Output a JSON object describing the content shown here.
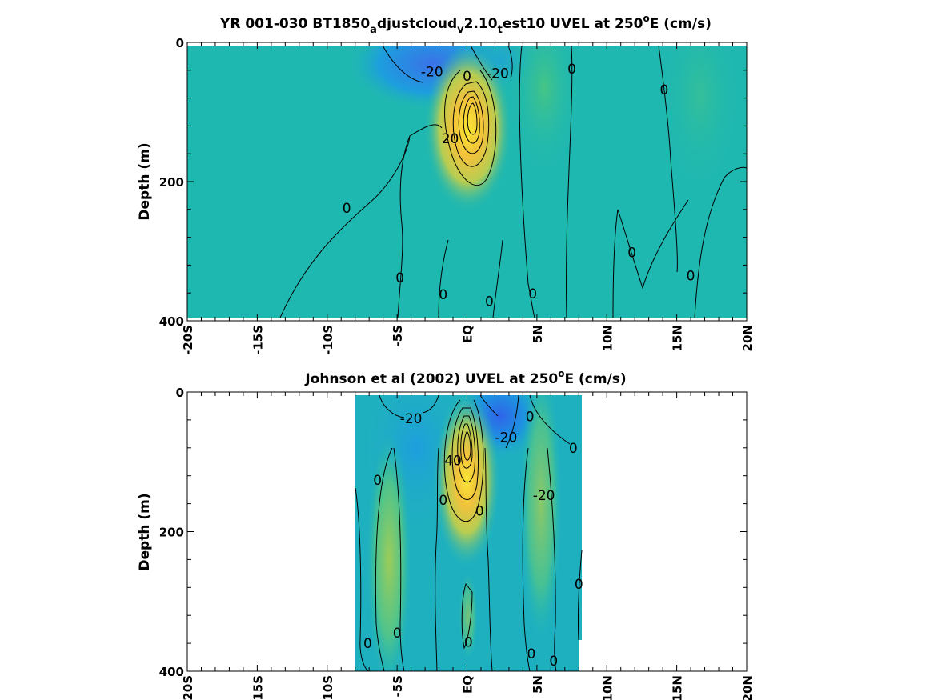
{
  "colors": {
    "background": "#1fb8b0",
    "colormap": [
      "#3a72e8",
      "#1d9ede",
      "#1fb8b0",
      "#58c78a",
      "#b7cd52",
      "#f1c23c",
      "#f9e534"
    ],
    "contour": "#000000"
  },
  "chart_data": [
    {
      "type": "heatmap",
      "title": "YR 001-030 BT1850",
      "title_sub_a": "a",
      "title_mid": "djustcloud",
      "title_sub_v": "v",
      "title_mid2": "2.10",
      "title_sub_t": "t",
      "title_end": "est10 UVEL at 250",
      "title_sup": "o",
      "title_unit": "E (cm/s)",
      "xlabel": "",
      "ylabel": "Depth (m)",
      "x_ticks": [
        "-20S",
        "-15S",
        "-10S",
        "-5S",
        "EQ",
        "5N",
        "10N",
        "15N",
        "20N"
      ],
      "x_tick_values": [
        -20,
        -15,
        -10,
        -5,
        0,
        5,
        10,
        15,
        20
      ],
      "y_ticks": [
        "0",
        "200",
        "400"
      ],
      "y_tick_values": [
        0,
        200,
        400
      ],
      "xlim": [
        -20,
        20
      ],
      "ylim": [
        400,
        0
      ],
      "data_extent": {
        "x": [
          -20,
          20
        ],
        "depth": [
          5,
          395
        ]
      },
      "features": [
        {
          "kind": "jet",
          "lat": -0.1,
          "depth": 110,
          "value": 80
        },
        {
          "kind": "westward",
          "lat": -2.5,
          "depth": 40,
          "value": -25
        },
        {
          "kind": "westward",
          "lat": 2.5,
          "depth": 40,
          "value": -22
        },
        {
          "kind": "eastward",
          "lat": 5.0,
          "depth": 60,
          "value": 10
        }
      ],
      "contour_labels": [
        {
          "text": "-20",
          "lat": -2.5,
          "depth": 42
        },
        {
          "text": "0",
          "lat": 0,
          "depth": 48
        },
        {
          "text": "-20",
          "lat": 2.2,
          "depth": 44
        },
        {
          "text": "0",
          "lat": 7.5,
          "depth": 38
        },
        {
          "text": "0",
          "lat": 14.1,
          "depth": 68
        },
        {
          "text": "20",
          "lat": -1.2,
          "depth": 138
        },
        {
          "text": "0",
          "lat": -8.6,
          "depth": 238
        },
        {
          "text": "0",
          "lat": 11.8,
          "depth": 302
        },
        {
          "text": "0",
          "lat": 16.0,
          "depth": 335
        },
        {
          "text": "0",
          "lat": -4.8,
          "depth": 338
        },
        {
          "text": "0",
          "lat": -1.7,
          "depth": 362
        },
        {
          "text": "0",
          "lat": 1.6,
          "depth": 372
        },
        {
          "text": "0",
          "lat": 4.7,
          "depth": 361
        }
      ]
    },
    {
      "type": "heatmap",
      "title": "Johnson et al (2002) UVEL at 250",
      "title_sup": "o",
      "title_unit": "E (cm/s)",
      "xlabel": "",
      "ylabel": "Depth (m)",
      "x_ticks": [
        "-20S",
        "-15S",
        "-10S",
        "-5S",
        "EQ",
        "5N",
        "10N",
        "15N",
        "20N"
      ],
      "x_tick_values": [
        -20,
        -15,
        -10,
        -5,
        0,
        5,
        10,
        15,
        20
      ],
      "y_ticks": [
        "0",
        "200",
        "400"
      ],
      "y_tick_values": [
        0,
        200,
        400
      ],
      "xlim": [
        -20,
        20
      ],
      "ylim": [
        400,
        0
      ],
      "data_extent": {
        "x": [
          -8,
          8.1
        ],
        "depth": [
          5,
          400
        ]
      },
      "features": [
        {
          "kind": "jet",
          "lat": -0.2,
          "depth": 85,
          "value": 100
        },
        {
          "kind": "westward",
          "lat": 2.5,
          "depth": 25,
          "value": -30
        },
        {
          "kind": "westward",
          "lat": -3.5,
          "depth": 20,
          "value": -20
        },
        {
          "kind": "eastward",
          "lat": -6.0,
          "depth": 180,
          "value": 15
        },
        {
          "kind": "eastward",
          "lat": 5.5,
          "depth": 100,
          "value": 15
        }
      ],
      "contour_labels": [
        {
          "text": "-20",
          "lat": -4.0,
          "depth": 38
        },
        {
          "text": "0",
          "lat": 4.5,
          "depth": 35
        },
        {
          "text": "-20",
          "lat": 2.8,
          "depth": 65
        },
        {
          "text": "0",
          "lat": 7.6,
          "depth": 80
        },
        {
          "text": "40",
          "lat": -1.0,
          "depth": 98
        },
        {
          "text": "0",
          "lat": -6.4,
          "depth": 126
        },
        {
          "text": "0",
          "lat": -1.7,
          "depth": 155
        },
        {
          "text": "0",
          "lat": 0.9,
          "depth": 170
        },
        {
          "text": "-20",
          "lat": 5.5,
          "depth": 148
        },
        {
          "text": "0",
          "lat": 8.0,
          "depth": 275
        },
        {
          "text": "0",
          "lat": -7.1,
          "depth": 360
        },
        {
          "text": "0",
          "lat": -5.0,
          "depth": 345
        },
        {
          "text": "0",
          "lat": 0.1,
          "depth": 358
        },
        {
          "text": "0",
          "lat": 4.6,
          "depth": 375
        },
        {
          "text": "0",
          "lat": 6.2,
          "depth": 385
        }
      ]
    }
  ]
}
